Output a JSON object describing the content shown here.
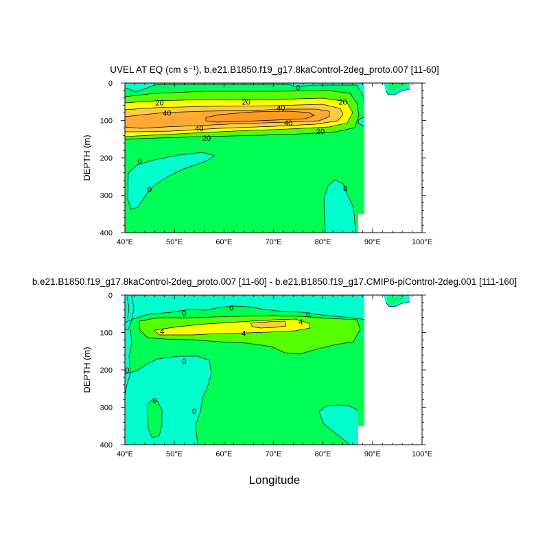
{
  "palette": {
    "cyan": "#00ffcc",
    "green": "#00ff55",
    "lime": "#55ff00",
    "yellow": "#ffff00",
    "gold": "#ffcc44",
    "orange": "#ffaa33",
    "deep": "#ff9922",
    "white": "#ffffff"
  },
  "chart_data": [
    {
      "type": "contour",
      "title": "UVEL AT EQ (cm s⁻¹), b.e21.B1850.f19_g17.8kaControl-2deg_proto.007 [11-60]",
      "ylabel": "DEPTH (m)",
      "xlabel": "",
      "xlim": [
        40,
        100
      ],
      "ylim": [
        0,
        400
      ],
      "y_inverted": true,
      "xticks": [
        "40°E",
        "50°E",
        "60°E",
        "70°E",
        "80°E",
        "90°E",
        "100°E"
      ],
      "yticks": [
        "0",
        "100",
        "200",
        "300",
        "400"
      ],
      "contour_labels": [
        {
          "text": "20",
          "lon": 47,
          "depth": 52
        },
        {
          "text": "20",
          "lon": 64.5,
          "depth": 50
        },
        {
          "text": "20",
          "lon": 84,
          "depth": 50
        },
        {
          "text": "40",
          "lon": 48.5,
          "depth": 80
        },
        {
          "text": "40",
          "lon": 71.5,
          "depth": 66
        },
        {
          "text": "40",
          "lon": 55,
          "depth": 121
        },
        {
          "text": "40",
          "lon": 73,
          "depth": 106
        },
        {
          "text": "20",
          "lon": 79.5,
          "depth": 128
        },
        {
          "text": "20",
          "lon": 56.5,
          "depth": 147
        },
        {
          "text": "0",
          "lon": 75,
          "depth": 12
        },
        {
          "text": "0",
          "lon": 43,
          "depth": 208
        },
        {
          "text": "0",
          "lon": 45,
          "depth": 284
        },
        {
          "text": "0",
          "lon": 84.5,
          "depth": 282
        }
      ]
    },
    {
      "type": "contour",
      "title": "b.e21.B1850.f19_g17.8kaControl-2deg_proto.007 [11-60] - b.e21.B1850.f19_g17.CMIP6-piControl-2deg.001 [111-160]",
      "ylabel": "DEPTH (m)",
      "xlabel": "Longitude",
      "xlim": [
        40,
        100
      ],
      "ylim": [
        0,
        400
      ],
      "y_inverted": true,
      "xticks": [
        "40°E",
        "50°E",
        "60°E",
        "70°E",
        "80°E",
        "90°E",
        "100°E"
      ],
      "yticks": [
        "0",
        "100",
        "200",
        "300",
        "400"
      ],
      "contour_labels": [
        {
          "text": "0",
          "lon": 52,
          "depth": 48
        },
        {
          "text": "0",
          "lon": 61.5,
          "depth": 34
        },
        {
          "text": "0",
          "lon": 77,
          "depth": 52
        },
        {
          "text": "4",
          "lon": 47.5,
          "depth": 96
        },
        {
          "text": "4",
          "lon": 75.5,
          "depth": 72
        },
        {
          "text": "4",
          "lon": 64,
          "depth": 102
        },
        {
          "text": "0",
          "lon": 40.5,
          "depth": 200
        },
        {
          "text": "0",
          "lon": 52,
          "depth": 176
        },
        {
          "text": "0",
          "lon": 46,
          "depth": 282
        },
        {
          "text": "0",
          "lon": 54,
          "depth": 310
        }
      ]
    }
  ]
}
